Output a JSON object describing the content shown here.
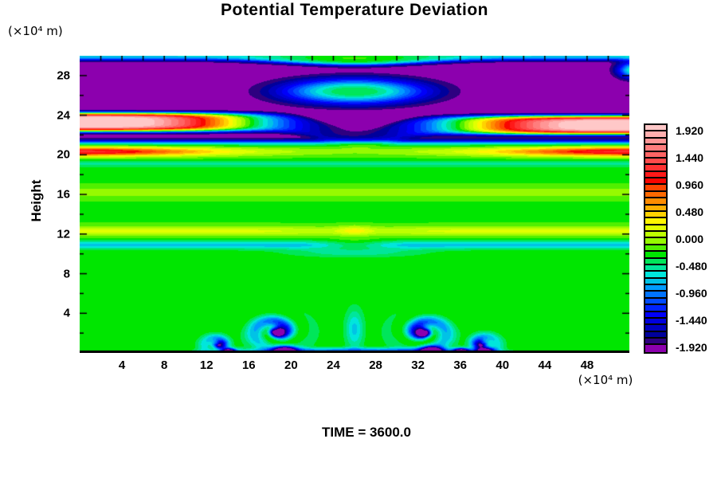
{
  "chart_data": {
    "type": "heatmap",
    "title": "Potential Temperature Deviation",
    "xlabel": "",
    "ylabel": "Height",
    "x_unit": "(×10⁴ m)",
    "y_unit": "(×10⁴ m)",
    "annotation": "TIME = 3600.0",
    "x_range": [
      0,
      52
    ],
    "y_range": [
      0,
      30
    ],
    "x_ticks": [
      4,
      8,
      12,
      16,
      20,
      24,
      28,
      32,
      36,
      40,
      44,
      48
    ],
    "y_ticks": [
      4,
      8,
      12,
      16,
      20,
      24,
      28
    ],
    "minor_tick_step": 2,
    "grid": false,
    "legend_position": "right",
    "colorbar": {
      "labels": [
        "1.920",
        "1.440",
        "0.960",
        "0.480",
        "0.000",
        "-0.480",
        "-0.960",
        "-1.440",
        "-1.920"
      ],
      "level_max": 1.92,
      "level_min": -1.92,
      "level_step": 0.12,
      "colors": [
        "#FFC8C8",
        "#FFAFAF",
        "#FF9696",
        "#FF7D7D",
        "#FF6464",
        "#FF4B4B",
        "#FF3232",
        "#FF1919",
        "#FA0500",
        "#FF4600",
        "#FF6900",
        "#FF8C00",
        "#FFAF00",
        "#FFD200",
        "#FFF500",
        "#E1FF00",
        "#BEFF00",
        "#96FA00",
        "#50F000",
        "#00E600",
        "#00E65A",
        "#00E69B",
        "#00E6DC",
        "#00C3E6",
        "#009BFF",
        "#0073FF",
        "#004BFF",
        "#0023FF",
        "#0000FA",
        "#0000DC",
        "#0000BE",
        "#00009B",
        "#2E0080",
        "#8C00AE"
      ]
    },
    "field_model": {
      "base": -0.26,
      "features": [
        {
          "t": "sig",
          "amp": -0.38,
          "y0": 29.42,
          "edge": 0.12
        },
        {
          "t": "slab",
          "amp": -1.82,
          "top": 29.58,
          "bot": 21.32,
          "eT": 0.13,
          "eB": 0.16,
          "dip": 0.5,
          "dcx": 26,
          "drx": 8
        },
        {
          "t": "dome",
          "amp": 1.72,
          "cx": 26,
          "cy": 26.4,
          "rx": 6.9,
          "ry": 1.3,
          "p": 1.15
        },
        {
          "t": "dome",
          "amp": 0.4,
          "cx": 26,
          "cy": 29.8,
          "rx": 8,
          "ry": 0.55,
          "p": 1
        },
        {
          "t": "dome",
          "amp": 1.6,
          "cx": 52.4,
          "cy": 28.55,
          "rx": 1.5,
          "ry": 0.8,
          "p": 1
        },
        {
          "t": "jet",
          "amp": 4.3,
          "side": 1,
          "y0": 23.3,
          "drop": 1.75,
          "xb": 23,
          "be": 1.5,
          "dx": 17,
          "dp": 3,
          "wy": 0.95,
          "k": 2.2
        },
        {
          "t": "jet",
          "amp": 4.25,
          "side": -1,
          "y0": 23.0,
          "drop": 1.75,
          "xb": 23,
          "be": 1.5,
          "dx": 17,
          "dp": 3,
          "wy": 0.95,
          "k": 2.2
        },
        {
          "t": "eband",
          "a1": 1.1,
          "d1": 11,
          "p1": 2,
          "a2": 0.42,
          "d2": 26,
          "y0": 20.32,
          "wy": 0.45
        },
        {
          "t": "dome",
          "amp": -0.28,
          "cx": 26,
          "cy": 19.1,
          "rx": 200,
          "ry": 0.32,
          "p": 1
        },
        {
          "t": "dome",
          "amp": 0.2,
          "cx": 26,
          "cy": 16.2,
          "rx": 200,
          "ry": 0.6,
          "p": 1
        },
        {
          "t": "dome",
          "amp": 0.42,
          "cx": 26,
          "cy": 12.3,
          "rx": 200,
          "ry": 0.5,
          "p": 1
        },
        {
          "t": "dome",
          "amp": -0.14,
          "cx": 26,
          "cy": 12.3,
          "rx": 6,
          "ry": 0.55,
          "p": 1
        },
        {
          "t": "dome",
          "amp": 0.3,
          "cx": 26,
          "cy": 12.35,
          "rx": 1.7,
          "ry": 0.5,
          "p": 1
        },
        {
          "t": "dome",
          "amp": -0.52,
          "cx": 26,
          "cy": 10.9,
          "rx": 200,
          "ry": 0.42,
          "p": 1
        },
        {
          "t": "dome",
          "amp": 0.38,
          "cx": 26,
          "cy": 10.9,
          "rx": 3.2,
          "ry": 0.5,
          "p": 1
        },
        {
          "t": "dome",
          "amp": -0.3,
          "cx": 26,
          "cy": 10.15,
          "rx": 6.5,
          "ry": 0.5,
          "p": 1
        },
        {
          "t": "dome",
          "amp": -0.85,
          "cx": 26,
          "cy": 0,
          "rx": 13,
          "ry": 0.5,
          "p": 1.6
        },
        {
          "t": "dome",
          "amp": -0.5,
          "cx": 26,
          "cy": 2.4,
          "rx": 0.85,
          "ry": 2.0,
          "p": 1
        },
        {
          "t": "vortex",
          "cx": 18.65,
          "cy": 2.15,
          "R": 2.0,
          "ex": 1.25,
          "ey": 0.85,
          "aA": -1.3,
          "bias": 0.5,
          "tw": 5.0,
          "ph": 1.7,
          "cA": -2.0,
          "cR": 0.5,
          "mir": 1
        },
        {
          "t": "vortex",
          "cx": 32.55,
          "cy": 2.1,
          "R": 2.0,
          "ex": 1.25,
          "ey": 0.85,
          "aA": -1.3,
          "bias": 0.5,
          "tw": 5.0,
          "ph": 1.7,
          "cA": -2.0,
          "cR": 0.5,
          "mir": -1
        },
        {
          "t": "vortex",
          "cx": 13.1,
          "cy": 0.85,
          "R": 1.3,
          "ex": 1.2,
          "ey": 0.8,
          "aA": -1.0,
          "bias": 0.6,
          "tw": 4.0,
          "ph": 1.2,
          "cA": -0.9,
          "cR": 0.45,
          "mir": 1
        },
        {
          "t": "vortex",
          "cx": 38.05,
          "cy": 0.9,
          "R": 1.4,
          "ex": 1.2,
          "ey": 0.8,
          "aA": -1.0,
          "bias": 0.6,
          "tw": 4.0,
          "ph": 1.2,
          "cA": -0.9,
          "cR": 0.45,
          "mir": -1
        },
        {
          "t": "dome",
          "amp": -2.3,
          "cx": 19.4,
          "cy": 0.2,
          "rx": 1.0,
          "ry": 0.45,
          "p": 1
        },
        {
          "t": "dome",
          "amp": -2.3,
          "cx": 33.3,
          "cy": 0.2,
          "rx": 1.0,
          "ry": 0.45,
          "p": 1
        },
        {
          "t": "dome",
          "amp": -2.2,
          "cx": 14.1,
          "cy": 0.15,
          "rx": 0.6,
          "ry": 0.3,
          "p": 1
        },
        {
          "t": "dome",
          "amp": -2.2,
          "cx": 36.1,
          "cy": 0.15,
          "rx": 0.7,
          "ry": 0.3,
          "p": 1
        },
        {
          "t": "dome",
          "amp": -2.2,
          "cx": 38.3,
          "cy": 0.2,
          "rx": 0.8,
          "ry": 0.35,
          "p": 1
        }
      ]
    },
    "description": "Filled-contour vertical cross-section: purple layer aloft with central green dome, warm pink-cored jets entering from left and right edges near height 23, secondary warm band near height 20, green interior with yellow band near height 12 and cyan band near height 11, and Kelvin-Helmholtz billow vortices along the bottom boundary."
  }
}
